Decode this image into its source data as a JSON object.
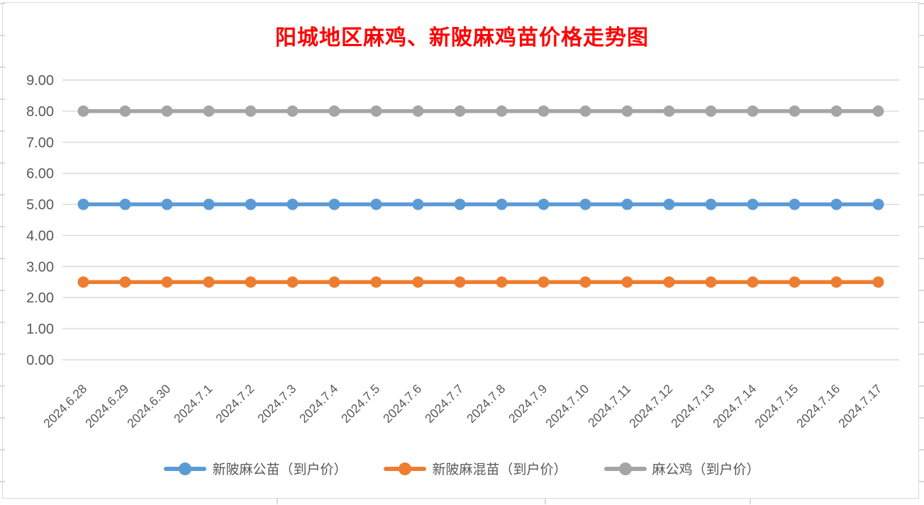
{
  "page": {
    "background": "#FFFFFF",
    "frame_border_color": "#D9D9D9"
  },
  "chart_data": {
    "type": "line",
    "title": "阳城地区麻鸡、新陂麻鸡苗价格走势图",
    "title_color": "#FF0000",
    "categories": [
      "2024.6.28",
      "2024.6.29",
      "2024.6.30",
      "2024.7.1",
      "2024.7.2",
      "2024.7.3",
      "2024.7.4",
      "2024.7.5",
      "2024.7.6",
      "2024.7.7",
      "2024.7.8",
      "2024.7.9",
      "2024.7.10",
      "2024.7.11",
      "2024.7.12",
      "2024.7.13",
      "2024.7.14",
      "2024.7.15",
      "2024.7.16",
      "2024.7.17"
    ],
    "series": [
      {
        "name": "新陂麻公苗（到户价）",
        "color": "#5B9BD5",
        "values": [
          5.0,
          5.0,
          5.0,
          5.0,
          5.0,
          5.0,
          5.0,
          5.0,
          5.0,
          5.0,
          5.0,
          5.0,
          5.0,
          5.0,
          5.0,
          5.0,
          5.0,
          5.0,
          5.0,
          5.0
        ]
      },
      {
        "name": "新陂麻混苗（到户价）",
        "color": "#ED7D31",
        "values": [
          2.5,
          2.5,
          2.5,
          2.5,
          2.5,
          2.5,
          2.5,
          2.5,
          2.5,
          2.5,
          2.5,
          2.5,
          2.5,
          2.5,
          2.5,
          2.5,
          2.5,
          2.5,
          2.5,
          2.5
        ]
      },
      {
        "name": "麻公鸡（到户价）",
        "color": "#A5A5A5",
        "values": [
          8.0,
          8.0,
          8.0,
          8.0,
          8.0,
          8.0,
          8.0,
          8.0,
          8.0,
          8.0,
          8.0,
          8.0,
          8.0,
          8.0,
          8.0,
          8.0,
          8.0,
          8.0,
          8.0,
          8.0
        ]
      }
    ],
    "y_axis": {
      "min": 0,
      "max": 9,
      "step": 1,
      "tick_labels": [
        "0.00",
        "1.00",
        "2.00",
        "3.00",
        "4.00",
        "5.00",
        "6.00",
        "7.00",
        "8.00",
        "9.00"
      ]
    },
    "x_axis": {
      "label_rotation_deg": -45
    },
    "grid": true,
    "gridline_color": "#D9D9D9",
    "axis_text_color": "#595959",
    "legend_position": "bottom",
    "marker_style": "circle"
  }
}
